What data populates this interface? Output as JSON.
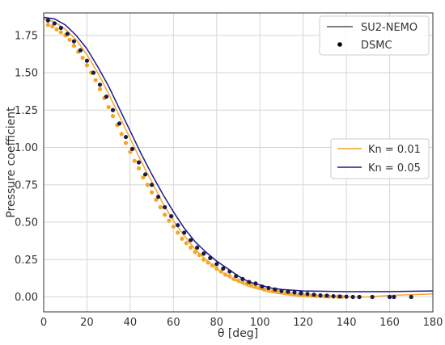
{
  "chart_data": {
    "type": "line",
    "xlabel": "θ [deg]",
    "ylabel": "Pressure coefficient",
    "xlim": [
      0,
      180
    ],
    "ylim": [
      -0.1,
      1.9
    ],
    "xticks": [
      0,
      20,
      40,
      60,
      80,
      100,
      120,
      140,
      160,
      180
    ],
    "yticks": [
      0.0,
      0.25,
      0.5,
      0.75,
      1.0,
      1.25,
      1.5,
      1.75
    ],
    "ytick_labels": [
      "0.00",
      "0.25",
      "0.50",
      "0.75",
      "1.00",
      "1.25",
      "1.50",
      "1.75"
    ],
    "grid": true,
    "legend_method": {
      "placement": "top-right",
      "entries": [
        {
          "label": "SU2-NEMO",
          "style": "line",
          "color": "#333333"
        },
        {
          "label": "DSMC",
          "style": "marker",
          "color": "#000000"
        }
      ]
    },
    "legend_kn": {
      "placement": "center-right",
      "entries": [
        {
          "label": "Kn = 0.01",
          "color": "#f5a623"
        },
        {
          "label": "Kn = 0.05",
          "color": "#1a1a8c"
        }
      ]
    },
    "series": [
      {
        "name": "Kn = 0.01",
        "method": "SU2-NEMO",
        "color": "#f5a623",
        "style": "line",
        "x": [
          0,
          5,
          10,
          15,
          20,
          25,
          30,
          35,
          40,
          45,
          50,
          55,
          60,
          65,
          70,
          75,
          80,
          85,
          90,
          95,
          100,
          105,
          110,
          115,
          120,
          130,
          140,
          150,
          160,
          170,
          180
        ],
        "y": [
          1.86,
          1.84,
          1.79,
          1.72,
          1.62,
          1.5,
          1.36,
          1.21,
          1.06,
          0.91,
          0.77,
          0.63,
          0.51,
          0.41,
          0.32,
          0.25,
          0.19,
          0.14,
          0.1,
          0.07,
          0.05,
          0.03,
          0.02,
          0.01,
          0.005,
          0.0,
          0.0,
          0.0,
          0.01,
          0.015,
          0.02
        ]
      },
      {
        "name": "Kn = 0.05",
        "method": "SU2-NEMO",
        "color": "#1a1a8c",
        "style": "line",
        "x": [
          0,
          5,
          10,
          15,
          20,
          25,
          30,
          35,
          40,
          45,
          50,
          55,
          60,
          65,
          70,
          75,
          80,
          85,
          90,
          95,
          100,
          105,
          110,
          115,
          120,
          130,
          140,
          150,
          160,
          170,
          180
        ],
        "y": [
          1.87,
          1.86,
          1.82,
          1.75,
          1.66,
          1.54,
          1.41,
          1.26,
          1.11,
          0.96,
          0.82,
          0.69,
          0.57,
          0.46,
          0.37,
          0.3,
          0.24,
          0.19,
          0.14,
          0.1,
          0.08,
          0.06,
          0.05,
          0.045,
          0.04,
          0.038,
          0.035,
          0.035,
          0.036,
          0.038,
          0.04
        ]
      },
      {
        "name": "Kn = 0.01",
        "method": "DSMC",
        "color": "#f5a623",
        "style": "marker",
        "x": [
          2,
          4,
          6,
          8,
          10,
          12,
          14,
          16,
          18,
          20,
          22,
          24,
          26,
          28,
          30,
          32,
          34,
          36,
          38,
          40,
          42,
          44,
          46,
          48,
          50,
          52,
          54,
          56,
          58,
          60,
          62,
          64,
          66,
          68,
          70,
          72,
          74,
          76,
          78,
          80,
          82,
          84,
          86,
          88,
          90,
          92,
          94,
          96,
          98,
          100,
          102,
          104,
          106,
          108,
          110,
          112,
          114,
          116,
          118,
          120,
          122,
          124,
          126,
          128,
          130,
          132,
          134,
          136,
          138
        ],
        "y": [
          1.82,
          1.81,
          1.79,
          1.77,
          1.75,
          1.72,
          1.68,
          1.64,
          1.6,
          1.55,
          1.5,
          1.45,
          1.39,
          1.33,
          1.27,
          1.21,
          1.15,
          1.09,
          1.03,
          0.97,
          0.91,
          0.86,
          0.8,
          0.75,
          0.7,
          0.65,
          0.6,
          0.55,
          0.51,
          0.47,
          0.43,
          0.39,
          0.36,
          0.33,
          0.3,
          0.28,
          0.25,
          0.23,
          0.21,
          0.19,
          0.17,
          0.15,
          0.14,
          0.12,
          0.11,
          0.1,
          0.09,
          0.08,
          0.07,
          0.06,
          0.05,
          0.045,
          0.04,
          0.035,
          0.03,
          0.025,
          0.02,
          0.018,
          0.015,
          0.012,
          0.01,
          0.008,
          0.006,
          0.005,
          0.004,
          0.003,
          0.002,
          0.002,
          0.001
        ]
      },
      {
        "name": "Kn = 0.05",
        "method": "DSMC",
        "color": "#1a1a4d",
        "style": "marker",
        "x": [
          2,
          5,
          8,
          11,
          14,
          17,
          20,
          23,
          26,
          29,
          32,
          35,
          38,
          41,
          44,
          47,
          50,
          53,
          56,
          59,
          62,
          65,
          68,
          71,
          74,
          77,
          80,
          83,
          86,
          89,
          92,
          95,
          98,
          101,
          104,
          107,
          110,
          113,
          116,
          119,
          122,
          125,
          128,
          131,
          134,
          137,
          140,
          143,
          146,
          152,
          160,
          162,
          170
        ],
        "y": [
          1.85,
          1.83,
          1.8,
          1.76,
          1.71,
          1.65,
          1.58,
          1.5,
          1.42,
          1.34,
          1.25,
          1.16,
          1.07,
          0.99,
          0.9,
          0.82,
          0.75,
          0.67,
          0.6,
          0.54,
          0.48,
          0.43,
          0.38,
          0.33,
          0.29,
          0.26,
          0.22,
          0.19,
          0.17,
          0.14,
          0.12,
          0.1,
          0.09,
          0.07,
          0.06,
          0.05,
          0.04,
          0.035,
          0.03,
          0.025,
          0.02,
          0.015,
          0.01,
          0.008,
          0.005,
          0.003,
          0.002,
          0.0,
          0.0,
          0.0,
          0.0,
          0.0,
          0.0
        ]
      }
    ]
  }
}
